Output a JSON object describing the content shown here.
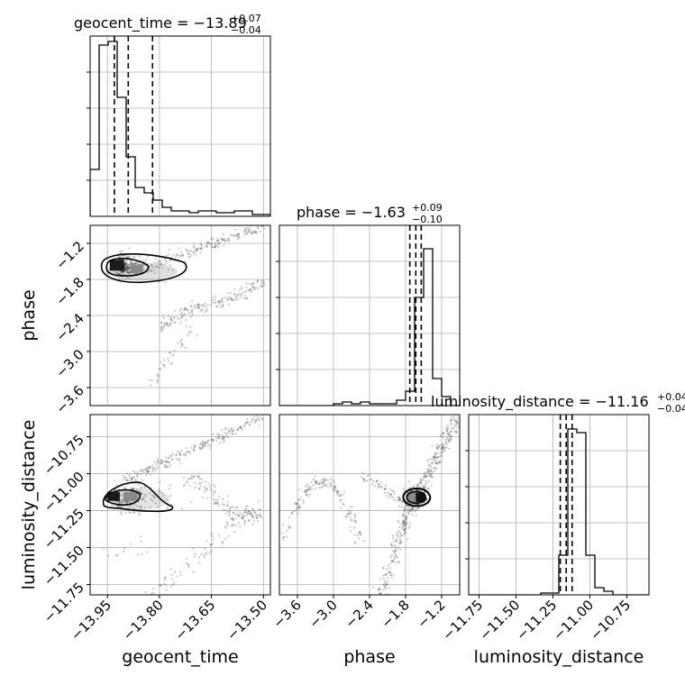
{
  "figure": {
    "titles": {
      "geocent_time": {
        "lead": "geocent_time = −13.89",
        "up": "+0.07",
        "down": "−0.04"
      },
      "phase": {
        "lead": "phase = −1.63",
        "up": "+0.09",
        "down": "−0.10"
      },
      "luminosity_distance": {
        "lead": "luminosity_distance = −11.16",
        "up": "+0.04",
        "down": "−0.04"
      }
    },
    "axis_labels": {
      "geocent_time": "geocent_time",
      "phase": "phase",
      "luminosity_distance": "luminosity_distance"
    }
  },
  "chart_data": {
    "type": "corner",
    "parameters": [
      "geocent_time",
      "phase",
      "luminosity_distance"
    ],
    "ranges": {
      "geocent_time": [
        -14.0,
        -13.48
      ],
      "phase": [
        -3.9,
        -0.9
      ],
      "luminosity_distance": [
        -11.82,
        -10.6
      ]
    },
    "ticks": {
      "geocent_time": {
        "values": [
          -13.95,
          -13.8,
          -13.65,
          -13.5
        ],
        "labels": [
          "−13.95",
          "−13.80",
          "−13.65",
          "−13.50"
        ]
      },
      "phase": {
        "values": [
          -3.6,
          -3.0,
          -2.4,
          -1.8,
          -1.2
        ],
        "labels": [
          "−3.6",
          "−3.0",
          "−2.4",
          "−1.8",
          "−1.2"
        ]
      },
      "luminosity_distance": {
        "values": [
          -11.75,
          -11.5,
          -11.25,
          -11.0,
          -10.75
        ],
        "labels": [
          "−11.75",
          "−11.50",
          "−11.25",
          "−11.00",
          "−10.75"
        ]
      }
    },
    "histograms": {
      "geocent_time": {
        "counts": [
          0.26,
          0.95,
          0.97,
          0.66,
          0.33,
          0.16,
          0.13,
          0.09,
          0.05,
          0.03,
          0.03,
          0.02,
          0.03,
          0.03,
          0.02,
          0.02,
          0.03,
          0.03,
          0.01,
          0.01
        ],
        "quantiles": [
          -13.93,
          -13.89,
          -13.82
        ]
      },
      "phase": {
        "counts": [
          0.0,
          0.0,
          0.0,
          0.0,
          0.0,
          0.0,
          0.01,
          0.02,
          0.01,
          0.02,
          0.01,
          0.01,
          0.01,
          0.03,
          0.08,
          0.6,
          0.87,
          0.15,
          0.05,
          0.0
        ],
        "quantiles": [
          -1.73,
          -1.63,
          -1.54
        ]
      },
      "luminosity_distance": {
        "counts": [
          0.0,
          0.0,
          0.0,
          0.0,
          0.0,
          0.0,
          0.0,
          0.0,
          0.01,
          0.01,
          0.22,
          0.92,
          0.9,
          0.22,
          0.04,
          0.02,
          0.0,
          0.0,
          0.0,
          0.0
        ],
        "quantiles": [
          -11.2,
          -11.16,
          -11.12
        ]
      }
    },
    "posterior_modes": {
      "phase_vs_geocent_time": {
        "x": -13.92,
        "y": -1.58
      },
      "luminosity_distance_vs_geocent_time": {
        "x": -13.93,
        "y": -11.16
      },
      "luminosity_distance_vs_phase": {
        "x": -1.63,
        "y": -11.16
      }
    },
    "grid": true
  }
}
